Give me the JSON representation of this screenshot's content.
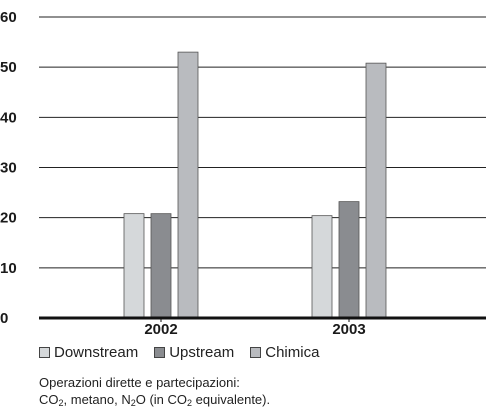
{
  "chart_data": {
    "type": "bar",
    "categories": [
      "2002",
      "2003"
    ],
    "series": [
      {
        "name": "Downstream",
        "values": [
          20.8,
          20.4
        ],
        "color": "#d5d8da"
      },
      {
        "name": "Upstream",
        "values": [
          20.8,
          23.2
        ],
        "color": "#8a8c90"
      },
      {
        "name": "Chimica",
        "values": [
          53.0,
          50.8
        ],
        "color": "#b9bbbf"
      }
    ],
    "ylim": [
      0,
      60
    ],
    "yticks": [
      "0",
      "10",
      "20",
      "30",
      "40",
      "50",
      "60"
    ],
    "grid": true,
    "legend_placement": "bottom-left"
  },
  "note": {
    "line1": "Operazioni dirette e partecipazioni:",
    "line2_parts": [
      "CO",
      "2",
      ", metano, N",
      "2",
      "O (in CO",
      "2",
      " equivalente)."
    ]
  }
}
